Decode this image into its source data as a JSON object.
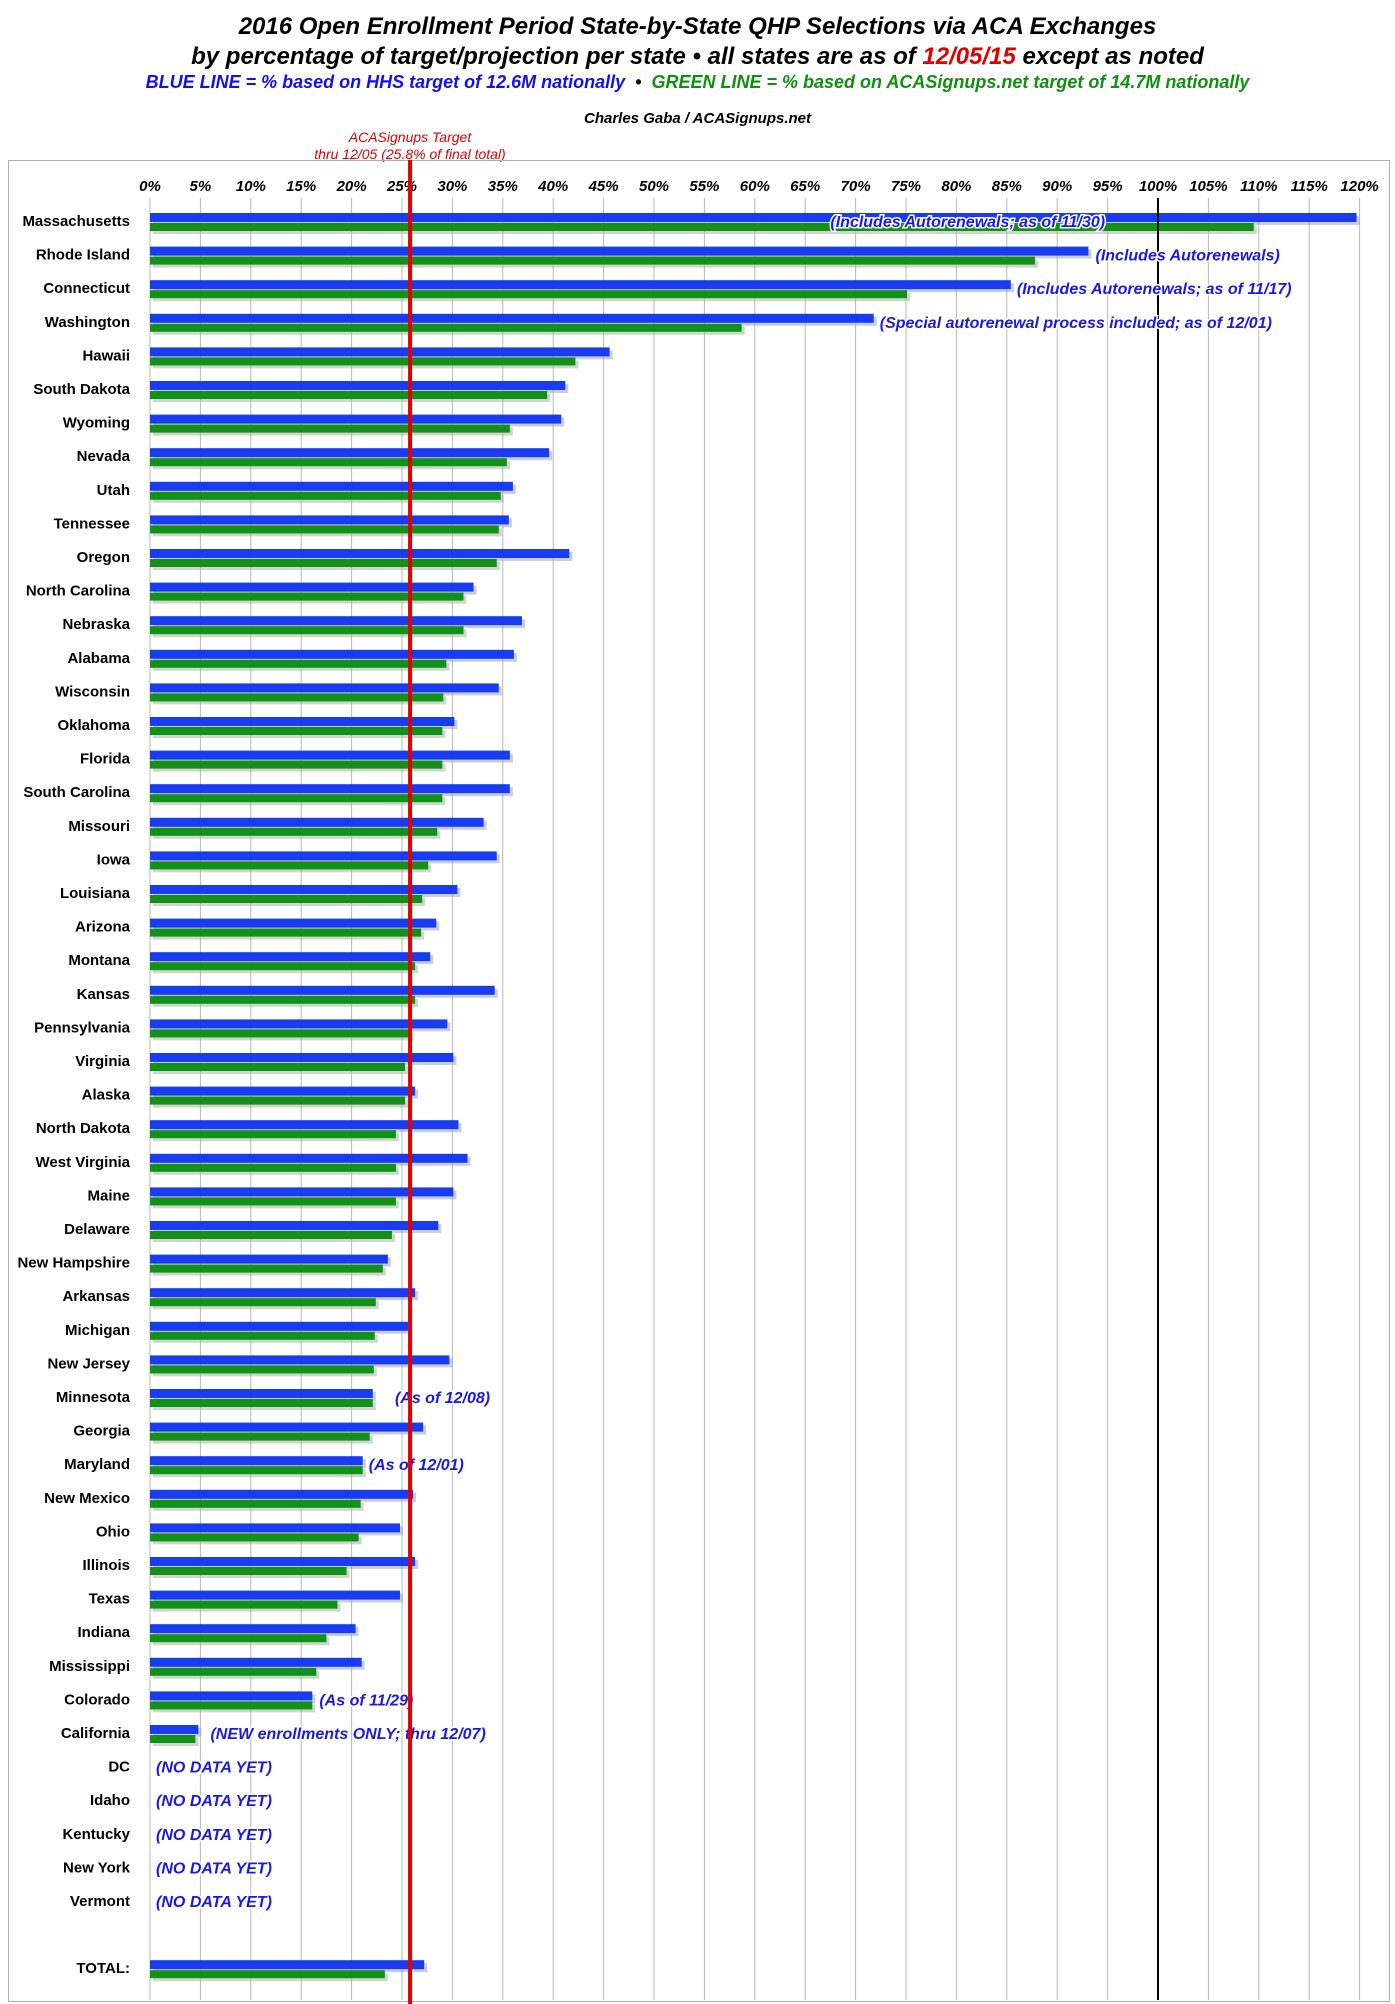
{
  "title": {
    "line1": "2016 Open Enrollment Period State-by-State QHP Selections via ACA Exchanges",
    "line2_pre": "by percentage of target/projection per state  •  all states are as of ",
    "line2_date": "12/05/15",
    "line2_post": " except as noted",
    "line3_blue": "BLUE LINE = % based on HHS target of 12.6M nationally",
    "line3_sep": "  •  ",
    "line3_green": "GREEN LINE = % based on ACASignups.net target of 14.7M nationally",
    "byline": "Charles Gaba / ACASignups.net"
  },
  "target_line": {
    "label1": "ACASignups Target",
    "label2": "thru 12/05 (25.8% of final total)",
    "value": 25.8,
    "color": "#e00000"
  },
  "colors": {
    "blue": "#1a3cf0",
    "green": "#12901a",
    "annotation": "#1a1ae0",
    "grid": "#b8b8b8",
    "hundred_line": "#000000"
  },
  "chart_data": {
    "type": "bar",
    "orientation": "horizontal",
    "xlim": [
      0,
      120
    ],
    "x_ticks": [
      "0%",
      "5%",
      "10%",
      "15%",
      "20%",
      "25%",
      "30%",
      "35%",
      "40%",
      "45%",
      "50%",
      "55%",
      "60%",
      "65%",
      "70%",
      "75%",
      "80%",
      "85%",
      "90%",
      "95%",
      "100%",
      "105%",
      "110%",
      "115%",
      "120%"
    ],
    "grid": true,
    "categories": [
      "Massachusetts",
      "Rhode Island",
      "Connecticut",
      "Washington",
      "Hawaii",
      "South Dakota",
      "Wyoming",
      "Nevada",
      "Utah",
      "Tennessee",
      "Oregon",
      "North Carolina",
      "Nebraska",
      "Alabama",
      "Wisconsin",
      "Oklahoma",
      "Florida",
      "South Carolina",
      "Missouri",
      "Iowa",
      "Louisiana",
      "Arizona",
      "Montana",
      "Kansas",
      "Pennsylvania",
      "Virginia",
      "Alaska",
      "North Dakota",
      "West Virginia",
      "Maine",
      "Delaware",
      "New Hampshire",
      "Arkansas",
      "Michigan",
      "New Jersey",
      "Minnesota",
      "Georgia",
      "Maryland",
      "New Mexico",
      "Ohio",
      "Illinois",
      "Texas",
      "Indiana",
      "Mississippi",
      "Colorado",
      "California",
      "DC",
      "Idaho",
      "Kentucky",
      "New York",
      "Vermont",
      "",
      "TOTAL:"
    ],
    "series": [
      {
        "name": "BLUE LINE = % based on HHS target of 12.6M nationally",
        "color": "#1a3cf0",
        "values": [
          119.7,
          93.1,
          85.4,
          71.8,
          45.6,
          41.2,
          40.8,
          39.6,
          36.0,
          35.6,
          41.6,
          32.1,
          36.9,
          36.1,
          34.6,
          30.2,
          35.7,
          35.7,
          33.1,
          34.4,
          30.5,
          28.4,
          27.8,
          34.2,
          29.5,
          30.1,
          26.3,
          30.6,
          31.5,
          30.1,
          28.6,
          23.6,
          26.3,
          25.6,
          29.7,
          22.1,
          27.1,
          21.1,
          26.1,
          24.8,
          26.3,
          24.8,
          20.4,
          21.0,
          16.1,
          4.8,
          null,
          null,
          null,
          null,
          null,
          null,
          27.2
        ]
      },
      {
        "name": "GREEN LINE = % based on ACASignups.net target of 14.7M nationally",
        "color": "#12901a",
        "values": [
          109.5,
          87.8,
          75.1,
          58.7,
          42.2,
          39.4,
          35.7,
          35.4,
          34.8,
          34.6,
          34.4,
          31.1,
          31.1,
          29.4,
          29.1,
          29.0,
          29.0,
          29.0,
          28.5,
          27.6,
          27.0,
          26.9,
          26.3,
          26.3,
          25.8,
          25.3,
          25.3,
          24.4,
          24.4,
          24.4,
          24.0,
          23.1,
          22.4,
          22.3,
          22.2,
          22.1,
          21.8,
          21.1,
          20.9,
          20.7,
          19.5,
          18.6,
          17.5,
          16.5,
          16.1,
          4.5,
          null,
          null,
          null,
          null,
          null,
          null,
          23.3
        ]
      }
    ],
    "annotations": [
      {
        "category": "Massachusetts",
        "text": "(Includes Autorenewals; as of 11/30)",
        "at": 67.5
      },
      {
        "category": "Rhode Island",
        "text": "(Includes Autorenewals)",
        "at": 93.8
      },
      {
        "category": "Connecticut",
        "text": "(Includes Autorenewals; as of 11/17)",
        "at": 86.0
      },
      {
        "category": "Washington",
        "text": "(Special autorenewal process included; as of 12/01)",
        "at": 72.4
      },
      {
        "category": "Minnesota",
        "text": "(As of 12/08)",
        "at": 24.3
      },
      {
        "category": "Maryland",
        "text": "(As of 12/01)",
        "at": 21.7
      },
      {
        "category": "Colorado",
        "text": "(As of 11/29)",
        "at": 16.8
      },
      {
        "category": "California",
        "text": "(NEW enrollments ONLY; thru 12/07)",
        "at": 6.0
      },
      {
        "category": "DC",
        "text": "(NO DATA YET)",
        "at": 0.6
      },
      {
        "category": "Idaho",
        "text": "(NO DATA YET)",
        "at": 0.6
      },
      {
        "category": "Kentucky",
        "text": "(NO DATA YET)",
        "at": 0.6
      },
      {
        "category": "New York",
        "text": "(NO DATA YET)",
        "at": 0.6
      },
      {
        "category": "Vermont",
        "text": "(NO DATA YET)",
        "at": 0.6
      }
    ],
    "reference_lines": [
      {
        "value": 100,
        "color": "#000000"
      },
      {
        "value": 25.8,
        "color": "#e00000"
      }
    ]
  }
}
